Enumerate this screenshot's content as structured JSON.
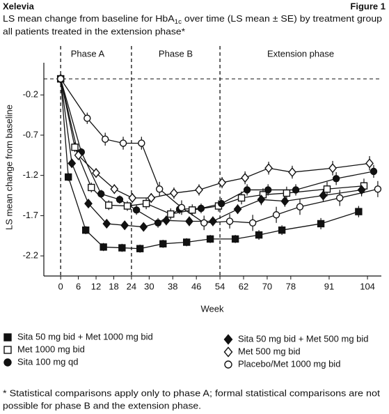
{
  "header": {
    "brand": "Xelevia",
    "figure": "Figure 1"
  },
  "chart_data": {
    "type": "line",
    "title": [
      "LS mean change from baseline for HbA",
      "1c",
      " over time (LS mean ± SE) by treatment group"
    ],
    "subtitle": "all patients treated in the extension phase*",
    "x_label": "Week",
    "y_label": "LS mean change from baseline",
    "phase_lines": [
      0,
      24,
      54
    ],
    "phase_labels": [
      "Phase A",
      "Phase B",
      "Extension phase"
    ],
    "reference_line": 0,
    "xlim": [
      -5.7,
      108.7
    ],
    "xticks": [
      0,
      6,
      12,
      18,
      24,
      30,
      38,
      46,
      54,
      62,
      70,
      78,
      91,
      104
    ],
    "ylim": [
      -2.45,
      0.2
    ],
    "yticks": [
      -0.2,
      -0.7,
      -1.2,
      -1.7,
      -2.2
    ],
    "series": [
      {
        "name": "Sita 50 mg bid + Met 1000 mg bid",
        "color": "#111111",
        "marker": "square",
        "filled": true,
        "x": [
          0,
          2.6,
          8.5,
          14.5,
          20.8,
          26.9,
          34.7,
          42.7,
          50.7,
          59.2,
          67.2,
          75,
          88.2,
          101
        ],
        "values": [
          0,
          -1.22,
          -1.88,
          -2.09,
          -2.1,
          -2.11,
          -2.05,
          -2.03,
          -1.99,
          -1.99,
          -1.94,
          -1.88,
          -1.8,
          -1.65
        ],
        "errors": [
          0,
          0.05,
          0.05,
          0.05,
          0.05,
          0.05,
          0.05,
          0.05,
          0.05,
          0.05,
          0.06,
          0.06,
          0.07,
          0.07
        ]
      },
      {
        "name": "Met 1000 mg bid",
        "color": "#111111",
        "marker": "square",
        "filled": false,
        "x": [
          0,
          4.8,
          10.4,
          16.3,
          22.6,
          29,
          37.3,
          44.6,
          53.5,
          61.3,
          68.6,
          76.6,
          90.3,
          102.8
        ],
        "values": [
          0,
          -0.85,
          -1.35,
          -1.57,
          -1.58,
          -1.55,
          -1.68,
          -1.63,
          -1.58,
          -1.48,
          -1.44,
          -1.42,
          -1.37,
          -1.33
        ],
        "errors": [
          0,
          0.06,
          0.06,
          0.06,
          0.06,
          0.07,
          0.07,
          0.07,
          0.07,
          0.08,
          0.08,
          0.08,
          0.09,
          0.09
        ]
      },
      {
        "name": "Sita 100 mg qd",
        "color": "#111111",
        "marker": "circle",
        "filled": true,
        "x": [
          0,
          7,
          13.7,
          20,
          25.7,
          33,
          40.3,
          47.6,
          54.5,
          63.2,
          70.3,
          79.7,
          93.4,
          106.1
        ],
        "values": [
          0,
          -0.91,
          -1.43,
          -1.5,
          -1.63,
          -1.79,
          -1.62,
          -1.61,
          -1.55,
          -1.38,
          -1.38,
          -1.38,
          -1.24,
          -1.15
        ],
        "errors": [
          0,
          0.05,
          0.05,
          0.05,
          0.06,
          0.06,
          0.06,
          0.06,
          0.07,
          0.07,
          0.07,
          0.07,
          0.08,
          0.08
        ]
      },
      {
        "name": "Sita 50 mg bid + Met 500 mg bid",
        "color": "#111111",
        "marker": "diamond",
        "filled": true,
        "x": [
          0,
          3.8,
          9.4,
          15.6,
          21.7,
          28.1,
          35.8,
          43.6,
          51.6,
          60,
          68,
          76,
          89,
          102
        ],
        "values": [
          0,
          -1.05,
          -1.55,
          -1.8,
          -1.82,
          -1.84,
          -1.76,
          -1.77,
          -1.77,
          -1.62,
          -1.5,
          -1.52,
          -1.45,
          -1.38
        ],
        "errors": [
          0,
          0.05,
          0.05,
          0.05,
          0.05,
          0.05,
          0.06,
          0.06,
          0.06,
          0.06,
          0.07,
          0.07,
          0.08,
          0.08
        ]
      },
      {
        "name": "Met 500 mg bid",
        "color": "#111111",
        "marker": "diamond",
        "filled": false,
        "x": [
          0,
          6,
          12,
          18.2,
          24.3,
          30.7,
          38.4,
          46.9,
          54.7,
          62.5,
          70.5,
          78.5,
          92.2,
          104.7
        ],
        "values": [
          0,
          -0.95,
          -1.17,
          -1.37,
          -1.48,
          -1.48,
          -1.42,
          -1.38,
          -1.29,
          -1.23,
          -1.11,
          -1.16,
          -1.11,
          -1.05
        ],
        "errors": [
          0,
          0.06,
          0.06,
          0.06,
          0.06,
          0.06,
          0.07,
          0.07,
          0.07,
          0.08,
          0.08,
          0.08,
          0.09,
          0.09
        ]
      },
      {
        "name": "Placebo/Met 1000 mg bid",
        "color": "#111111",
        "marker": "circle",
        "filled": false,
        "x": [
          0,
          9,
          15.1,
          21.2,
          27.4,
          33.5,
          41,
          48.6,
          57.3,
          65.1,
          73.1,
          81.1,
          94.6,
          107.5
        ],
        "values": [
          0,
          -0.49,
          -0.75,
          -0.8,
          -0.8,
          -1.37,
          -1.6,
          -1.79,
          -1.77,
          -1.79,
          -1.69,
          -1.59,
          -1.48,
          -1.37
        ],
        "errors": [
          0,
          0.07,
          0.08,
          0.08,
          0.08,
          0.09,
          0.09,
          0.09,
          0.09,
          0.1,
          0.1,
          0.1,
          0.1,
          0.1
        ]
      }
    ]
  },
  "footnote": [
    "* Statistical comparisons apply only to phase A; formal statistical comparisons are not",
    "possible for phase B and the extension phase."
  ]
}
